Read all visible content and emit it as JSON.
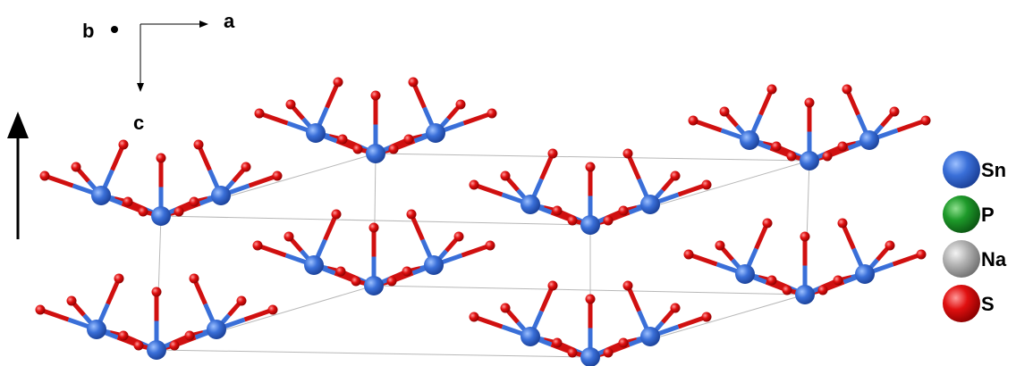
{
  "axes": {
    "a": "a",
    "b": "b",
    "c": "c"
  },
  "legend": [
    {
      "label": "Sn"
    },
    {
      "label": "P"
    },
    {
      "label": "Na"
    },
    {
      "label": "S"
    }
  ]
}
